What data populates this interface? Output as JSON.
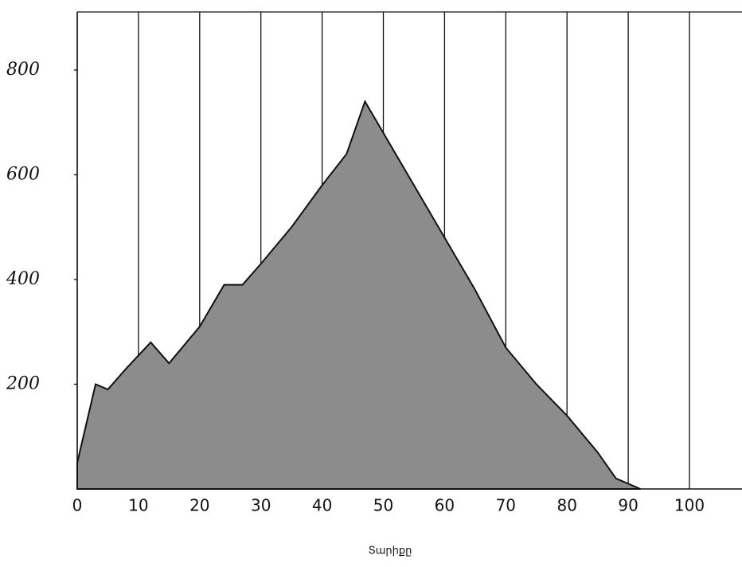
{
  "chart_data": {
    "type": "area",
    "x": [
      0,
      3,
      5,
      8,
      12,
      15,
      20,
      24,
      27,
      30,
      35,
      40,
      44,
      47,
      50,
      55,
      60,
      65,
      70,
      75,
      80,
      85,
      88,
      92
    ],
    "values": [
      50,
      200,
      190,
      230,
      280,
      240,
      310,
      390,
      390,
      430,
      500,
      580,
      640,
      740,
      680,
      580,
      480,
      380,
      270,
      200,
      140,
      70,
      20,
      0
    ],
    "color": "#8c8c8c",
    "xlabel": "Տարիքը",
    "xlim": [
      0,
      108.6
    ],
    "ylim": [
      0,
      911
    ],
    "xticks": [
      0,
      10,
      20,
      30,
      40,
      50,
      60,
      70,
      80,
      90,
      100
    ],
    "yticks": [
      200,
      400,
      600,
      800
    ],
    "grid": true
  }
}
